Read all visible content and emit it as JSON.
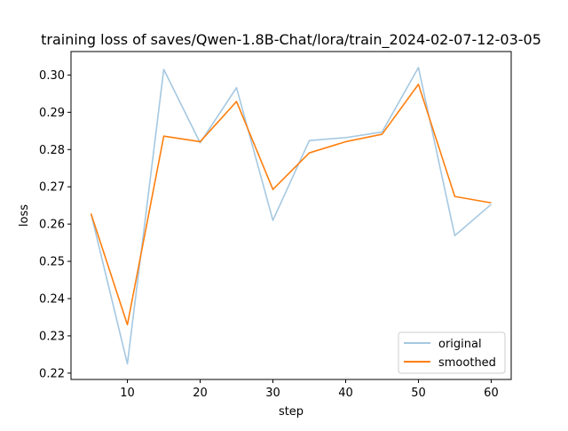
{
  "chart_data": {
    "type": "line",
    "title": "training loss of saves/Qwen-1.8B-Chat/lora/train_2024-02-07-12-03-05",
    "xlabel": "step",
    "ylabel": "loss",
    "xlim": [
      2.25,
      62.75
    ],
    "ylim": [
      0.2183,
      0.3063
    ],
    "xticks": [
      10,
      20,
      30,
      40,
      50,
      60
    ],
    "yticks": [
      0.22,
      0.23,
      0.24,
      0.25,
      0.26,
      0.27,
      0.28,
      0.29,
      0.3
    ],
    "ytick_labels": [
      "0.22",
      "0.23",
      "0.24",
      "0.25",
      "0.26",
      "0.27",
      "0.28",
      "0.29",
      "0.30"
    ],
    "grid": false,
    "legend_position": "lower-right",
    "x": [
      5,
      10,
      15,
      20,
      25,
      30,
      35,
      40,
      45,
      50,
      55,
      60
    ],
    "series": [
      {
        "name": "original",
        "color": "#a5c8e1",
        "values": [
          0.2628,
          0.2225,
          0.3015,
          0.2818,
          0.2966,
          0.261,
          0.2824,
          0.2832,
          0.2847,
          0.302,
          0.2569,
          0.2653
        ]
      },
      {
        "name": "smoothed",
        "color": "#ff7f0e",
        "values": [
          0.2628,
          0.233,
          0.2836,
          0.2821,
          0.2929,
          0.2693,
          0.2791,
          0.2821,
          0.2841,
          0.2975,
          0.2674,
          0.2657
        ]
      }
    ]
  }
}
